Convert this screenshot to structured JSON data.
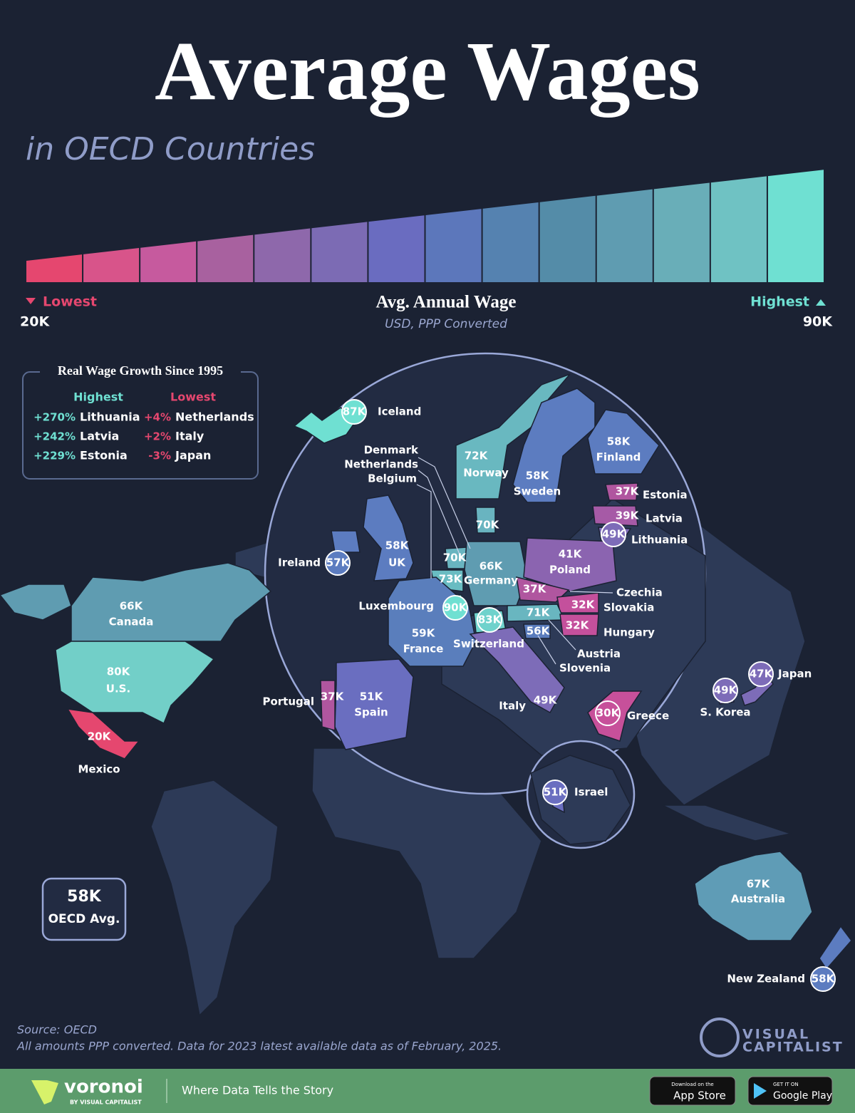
{
  "header": {
    "title": "Average Wages",
    "subtitle": "in OECD Countries"
  },
  "scale": {
    "title": "Avg. Annual Wage",
    "subtitle": "USD, PPP Converted",
    "low_label": "Lowest",
    "low_value": "20K",
    "high_label": "Highest",
    "high_value": "90K",
    "colors": [
      "#e5476f",
      "#d8548a",
      "#c65a9e",
      "#a8619f",
      "#8e68ab",
      "#7c6bb4",
      "#6a6cc0",
      "#5c77bb",
      "#5582b0",
      "#548ca8",
      "#5f9cb1",
      "#69aeb8",
      "#6fc2c3",
      "#6fe0d2"
    ]
  },
  "growth": {
    "title": "Real Wage Growth Since 1995",
    "highest": {
      "heading": "Highest",
      "rows": [
        [
          "+270%",
          "Lithuania"
        ],
        [
          "+242%",
          "Latvia"
        ],
        [
          "+229%",
          "Estonia"
        ]
      ]
    },
    "lowest": {
      "heading": "Lowest",
      "rows": [
        [
          "+4%",
          "Netherlands"
        ],
        [
          "+2%",
          "Italy"
        ],
        [
          "-3%",
          "Japan"
        ]
      ]
    }
  },
  "countries": [
    {
      "name": "Iceland",
      "value": "87K",
      "color": "#6fe0d2"
    },
    {
      "name": "Norway",
      "value": "72K",
      "color": "#69b8c0"
    },
    {
      "name": "Sweden",
      "value": "58K",
      "color": "#5c7cc0"
    },
    {
      "name": "Finland",
      "value": "58K",
      "color": "#5c7cc0"
    },
    {
      "name": "Estonia",
      "value": "37K",
      "color": "#b0569f"
    },
    {
      "name": "Latvia",
      "value": "39K",
      "color": "#a65aa6"
    },
    {
      "name": "Lithuania",
      "value": "49K",
      "color": "#7d6cb8"
    },
    {
      "name": "Denmark",
      "value": "70K",
      "color": "#69b4c0"
    },
    {
      "name": "Netherlands",
      "value": "70K",
      "color": "#69b4c0"
    },
    {
      "name": "Belgium",
      "value": "73K",
      "color": "#69bcc2"
    },
    {
      "name": "UK",
      "value": "58K",
      "color": "#5c7cc0"
    },
    {
      "name": "Ireland",
      "value": "57K",
      "color": "#5c7cc0"
    },
    {
      "name": "Germany",
      "value": "66K",
      "color": "#5f9cb1"
    },
    {
      "name": "Poland",
      "value": "41K",
      "color": "#8b64b0"
    },
    {
      "name": "Czechia",
      "value": "37K",
      "color": "#b0569f"
    },
    {
      "name": "Slovakia",
      "value": "32K",
      "color": "#c4509c"
    },
    {
      "name": "Luxembourg",
      "value": "90K",
      "color": "#6fe0d2"
    },
    {
      "name": "Switzerland",
      "value": "83K",
      "color": "#6fd2cc"
    },
    {
      "name": "Austria",
      "value": "71K",
      "color": "#69b6c0"
    },
    {
      "name": "Hungary",
      "value": "32K",
      "color": "#c4509c"
    },
    {
      "name": "Slovenia",
      "value": "56K",
      "color": "#5a7cbc"
    },
    {
      "name": "France",
      "value": "59K",
      "color": "#5a7ebc"
    },
    {
      "name": "Spain",
      "value": "51K",
      "color": "#6a6ec0"
    },
    {
      "name": "Portugal",
      "value": "37K",
      "color": "#b0569f"
    },
    {
      "name": "Italy",
      "value": "49K",
      "color": "#7d6cb8"
    },
    {
      "name": "Greece",
      "value": "30K",
      "color": "#c7509a"
    },
    {
      "name": "Israel",
      "value": "51K",
      "color": "#6a6ec0"
    },
    {
      "name": "Japan",
      "value": "47K",
      "color": "#7d6cb8"
    },
    {
      "name": "S. Korea",
      "value": "49K",
      "color": "#7d6cb8"
    },
    {
      "name": "Canada",
      "value": "66K",
      "color": "#5f9cb1"
    },
    {
      "name": "U.S.",
      "value": "80K",
      "color": "#72cfc8"
    },
    {
      "name": "Mexico",
      "value": "20K",
      "color": "#e5476f"
    },
    {
      "name": "Australia",
      "value": "67K",
      "color": "#5f9cb6"
    },
    {
      "name": "New Zealand",
      "value": "58K",
      "color": "#5c7cc0"
    }
  ],
  "average": {
    "value": "58K",
    "label": "OECD Avg."
  },
  "source": {
    "line1": "Source: OECD",
    "line2": "All amounts PPP converted. Data for 2023 latest available data as of February, 2025."
  },
  "brand": {
    "line1": "VISUAL",
    "line2": "CAPITALIST"
  },
  "footer": {
    "logo": "voronoi",
    "logo_sub": "BY VISUAL CAPITALIST",
    "tagline": "Where Data Tells the Story",
    "apple_small": "Download on the",
    "apple": "App Store",
    "google_small": "GET IT ON",
    "google": "Google Play"
  }
}
